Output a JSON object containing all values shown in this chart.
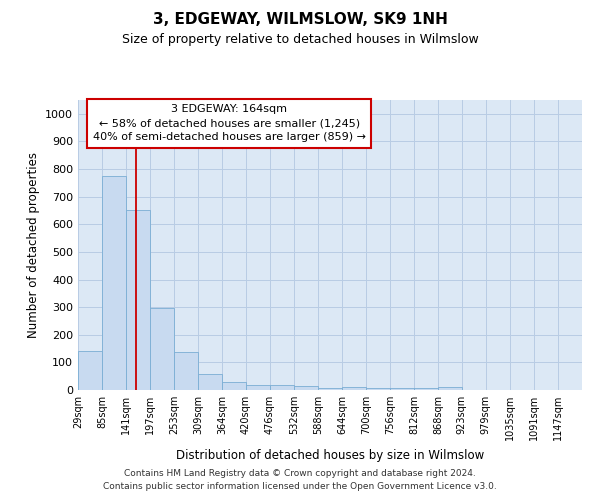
{
  "title": "3, EDGEWAY, WILMSLOW, SK9 1NH",
  "subtitle": "Size of property relative to detached houses in Wilmslow",
  "xlabel": "Distribution of detached houses by size in Wilmslow",
  "ylabel": "Number of detached properties",
  "bar_color": "#c8daf0",
  "bar_edge_color": "#7aadd4",
  "red_line_x": 164,
  "categories": [
    "29sqm",
    "85sqm",
    "141sqm",
    "197sqm",
    "253sqm",
    "309sqm",
    "364sqm",
    "420sqm",
    "476sqm",
    "532sqm",
    "588sqm",
    "644sqm",
    "700sqm",
    "756sqm",
    "812sqm",
    "868sqm",
    "923sqm",
    "979sqm",
    "1035sqm",
    "1091sqm",
    "1147sqm"
  ],
  "bin_edges": [
    29,
    85,
    141,
    197,
    253,
    309,
    364,
    420,
    476,
    532,
    588,
    644,
    700,
    756,
    812,
    868,
    923,
    979,
    1035,
    1091,
    1147,
    1203
  ],
  "values": [
    140,
    775,
    650,
    297,
    137,
    57,
    30,
    18,
    18,
    13,
    8,
    10,
    8,
    8,
    8,
    10,
    0,
    0,
    0,
    0,
    0
  ],
  "ylim": [
    0,
    1050
  ],
  "yticks": [
    0,
    100,
    200,
    300,
    400,
    500,
    600,
    700,
    800,
    900,
    1000
  ],
  "annotation_box_text": "3 EDGEWAY: 164sqm\n← 58% of detached houses are smaller (1,245)\n40% of semi-detached houses are larger (859) →",
  "annotation_box_color": "#ffffff",
  "annotation_box_edgecolor": "#cc0000",
  "footer_line1": "Contains HM Land Registry data © Crown copyright and database right 2024.",
  "footer_line2": "Contains public sector information licensed under the Open Government Licence v3.0.",
  "background_color": "#ffffff",
  "plot_bg_color": "#dce8f5",
  "grid_color": "#b8cce4"
}
